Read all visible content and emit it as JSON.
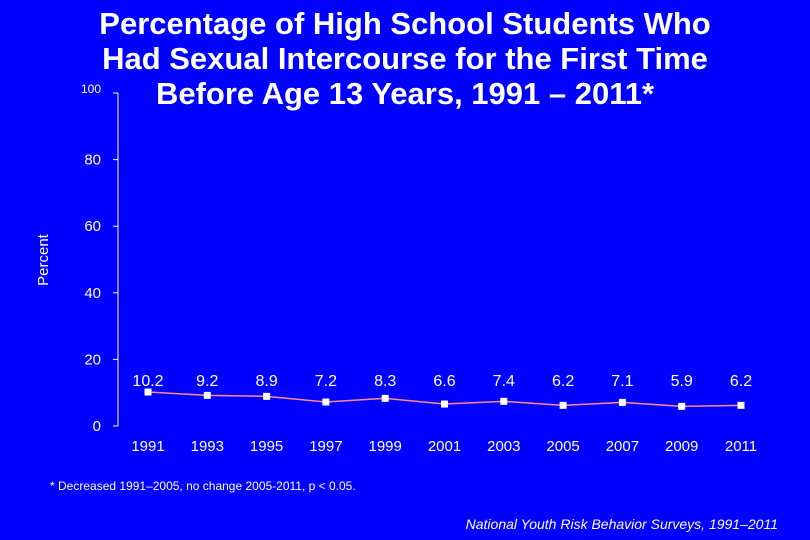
{
  "title_lines": [
    "Percentage of High School Students Who",
    "Had Sexual Intercourse for the First Time",
    "Before Age 13 Years, 1991 – 2011*"
  ],
  "footnote": "* Decreased 1991–2005, no change 2005-2011, p < 0.05.",
  "source": "National Youth Risk Behavior Surveys, 1991–2011",
  "colors": {
    "background": "#0000ff",
    "line": "#ff8c8c",
    "marker": "#ffffff",
    "text": "#ffffff"
  },
  "chart_data": {
    "type": "line",
    "title": "Percentage of High School Students Who Had Sexual Intercourse for the First Time Before Age 13 Years, 1991 – 2011*",
    "xlabel": "",
    "ylabel": "Percent",
    "ylim": [
      0,
      100
    ],
    "yticks": [
      0,
      20,
      40,
      60,
      80,
      100
    ],
    "grid": false,
    "legend": "none",
    "categories": [
      "1991",
      "1993",
      "1995",
      "1997",
      "1999",
      "2001",
      "2003",
      "2005",
      "2007",
      "2009",
      "2011"
    ],
    "series": [
      {
        "values": [
          10.2,
          9.2,
          8.9,
          7.2,
          8.3,
          6.6,
          7.4,
          6.2,
          7.1,
          5.9,
          6.2
        ],
        "labels": [
          "10.2",
          "9.2",
          "8.9",
          "7.2",
          "8.3",
          "6.6",
          "7.4",
          "6.2",
          "7.1",
          "5.9",
          "6.2"
        ]
      }
    ]
  }
}
